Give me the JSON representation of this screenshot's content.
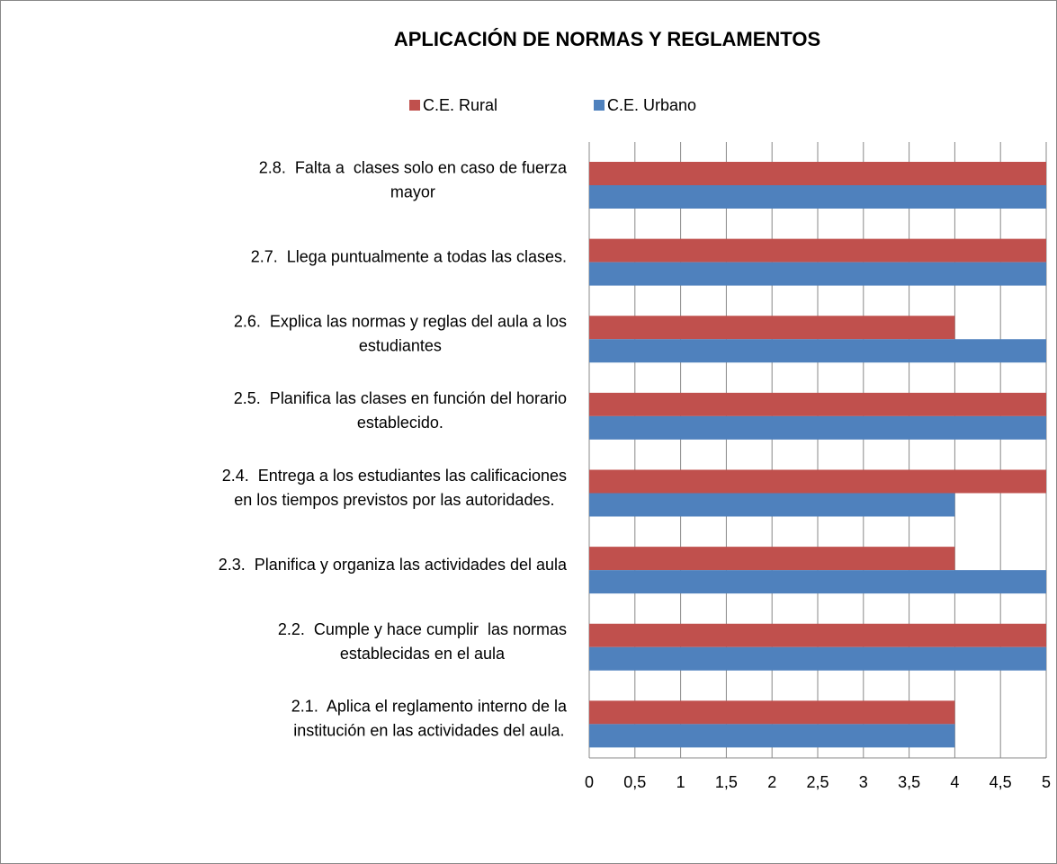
{
  "chart_data": {
    "type": "hbar",
    "title": "APLICACIÓN DE NORMAS Y REGLAMENTOS",
    "categories": [
      "2.1.  Aplica el reglamento interno de la\ninstitución en las actividades del aula.",
      "2.2.  Cumple y hace cumplir  las normas\nestablecidas en el aula",
      "2.3.  Planifica y organiza las actividades del aula",
      "2.4.  Entrega a los estudiantes las calificaciones\nen los tiempos previstos por las autoridades.",
      "2.5.  Planifica las clases en función del horario\nestablecido.",
      "2.6.  Explica las normas y reglas del aula a los\nestudiantes",
      "2.7.  Llega puntualmente a todas las clases.",
      "2.8.  Falta a  clases solo en caso de fuerza\nmayor"
    ],
    "series": [
      {
        "name": "C.E. Rural",
        "color": "#c0504d",
        "values": [
          4,
          5,
          4,
          5,
          5,
          4,
          5,
          5
        ]
      },
      {
        "name": "C.E. Urbano",
        "color": "#4f81bd",
        "values": [
          4,
          5,
          5,
          4,
          5,
          5,
          5,
          5
        ]
      }
    ],
    "xlim": [
      0,
      5
    ],
    "xticks": [
      0,
      {
        "value": 0.5,
        "label": "0,5"
      },
      1,
      {
        "value": 1.5,
        "label": "1,5"
      },
      2,
      {
        "value": 2.5,
        "label": "2,5"
      },
      3,
      {
        "value": 3.5,
        "label": "3,5"
      },
      4,
      {
        "value": 4.5,
        "label": "4,5"
      },
      5
    ],
    "grid": true,
    "legend": "top"
  }
}
